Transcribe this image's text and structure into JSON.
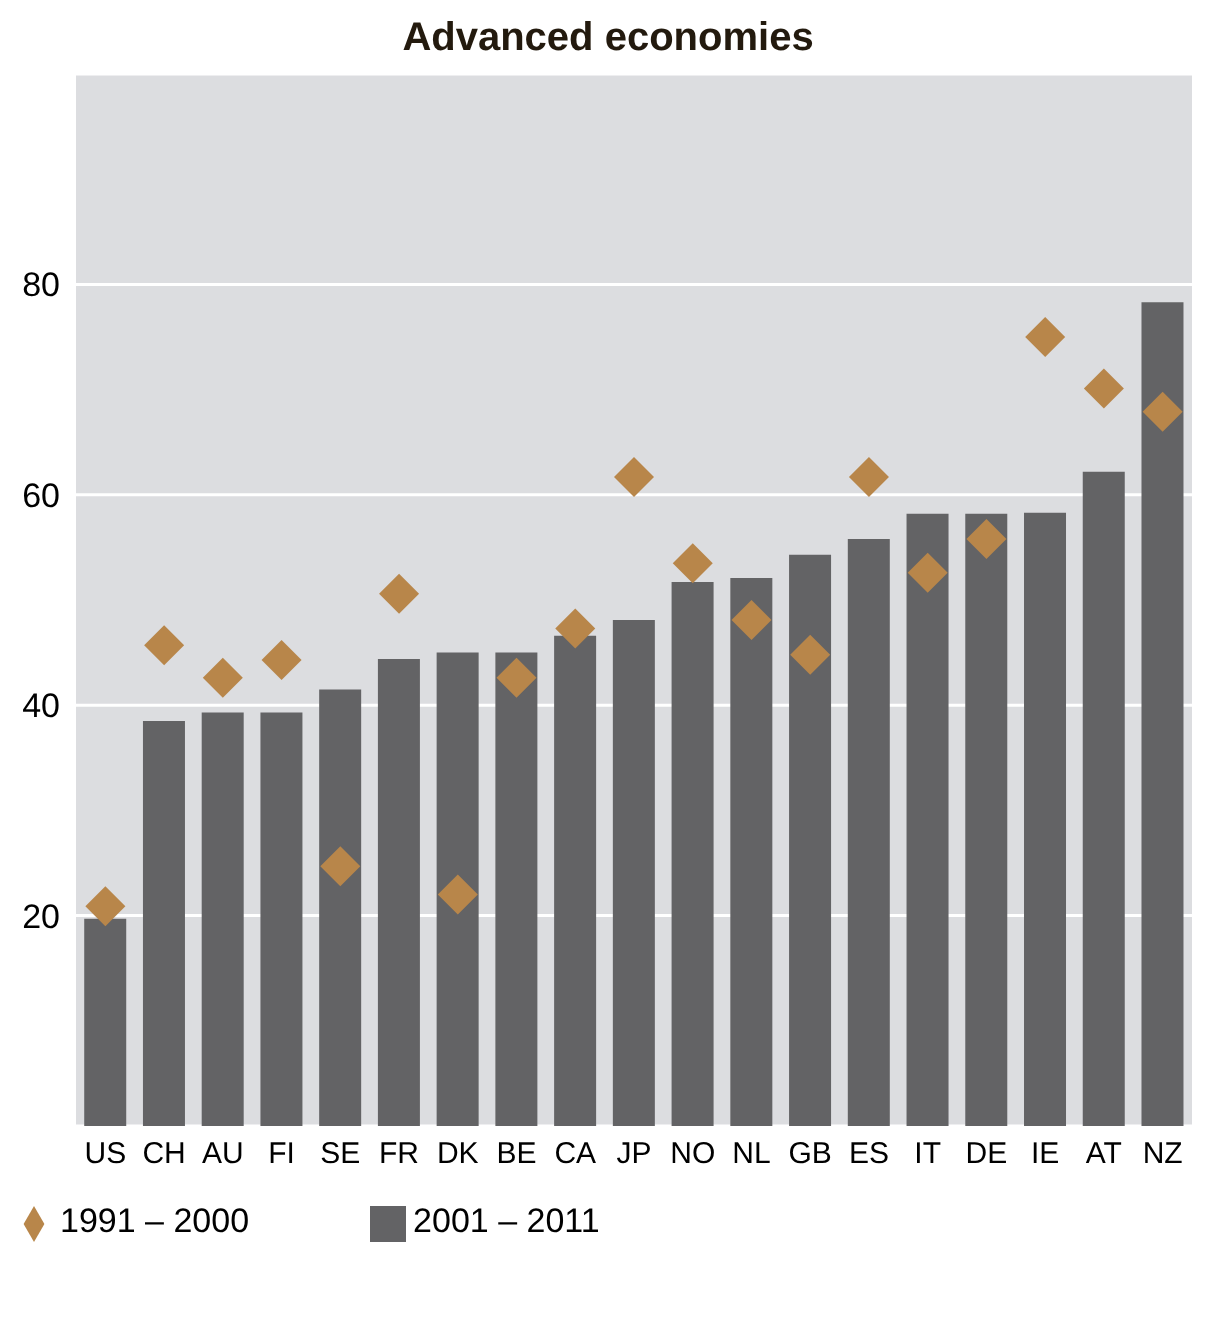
{
  "chart_data": {
    "type": "bar",
    "title": "Advanced economies",
    "categories": [
      "US",
      "CH",
      "AU",
      "FI",
      "SE",
      "FR",
      "DK",
      "BE",
      "CA",
      "JP",
      "NO",
      "NL",
      "GB",
      "ES",
      "IT",
      "DE",
      "IE",
      "AT",
      "NZ"
    ],
    "series": [
      {
        "name": "1991 – 2000",
        "type": "scatter",
        "color": "#b8864a",
        "values": [
          20.9,
          45.7,
          42.6,
          44.3,
          24.7,
          50.6,
          22.0,
          42.6,
          47.3,
          61.7,
          53.5,
          48.1,
          44.8,
          61.7,
          52.6,
          55.8,
          75.0,
          70.1,
          67.9
        ]
      },
      {
        "name": "2001 – 2011",
        "color": "#636365",
        "values": [
          19.7,
          38.5,
          39.3,
          39.3,
          41.5,
          44.4,
          45.0,
          45.0,
          46.6,
          48.1,
          51.7,
          52.1,
          54.3,
          55.8,
          58.2,
          58.2,
          58.3,
          62.2,
          78.3
        ]
      }
    ],
    "ylim": [
      0,
      100
    ],
    "yticks": [
      20,
      40,
      60,
      80
    ],
    "grid": "y",
    "legend": "bottom left",
    "marker": "diamond"
  }
}
